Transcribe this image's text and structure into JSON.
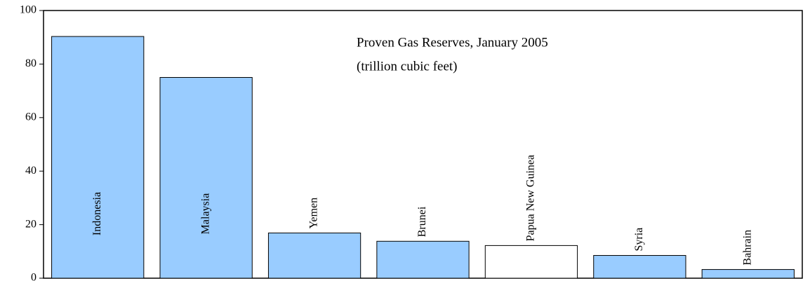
{
  "chart_data": {
    "type": "bar",
    "annotation": [
      "Proven Gas Reserves, January 2005",
      "(trillion cubic feet)"
    ],
    "categories": [
      "Indonesia",
      "Malaysia",
      "Yemen",
      "Brunei",
      "Papua New Guinea",
      "Syria",
      "Bahrain"
    ],
    "values": [
      90.3,
      75,
      16.9,
      13.8,
      12.2,
      8.5,
      3.25
    ],
    "colors": [
      "#99ccff",
      "#99ccff",
      "#99ccff",
      "#99ccff",
      "#ffffff",
      "#99ccff",
      "#99ccff"
    ],
    "ylim": [
      0,
      100
    ],
    "yticks": [
      0,
      20,
      40,
      60,
      80,
      100
    ],
    "grid": false
  }
}
